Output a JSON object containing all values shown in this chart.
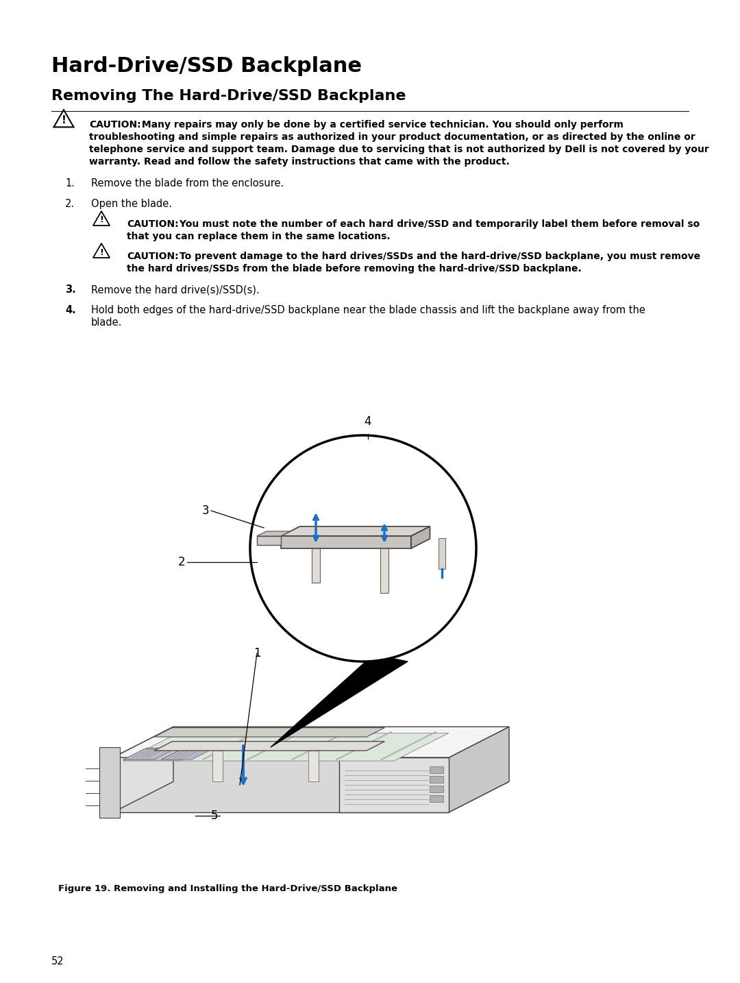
{
  "bg_color": "#ffffff",
  "title": "Hard-Drive/SSD Backplane",
  "subtitle": "Removing The Hard-Drive/SSD Backplane",
  "caution1_bold": "CAUTION:",
  "caution1_rest": " Many repairs may only be done by a certified service technician. You should only perform troubleshooting and simple repairs as authorized in your product documentation, or as directed by the online or telephone service and support team. Damage due to servicing that is not authorized by Dell is not covered by your warranty. Read and follow the safety instructions that came with the product.",
  "step1": "Remove the blade from the enclosure.",
  "step2": "Open the blade.",
  "caution2_bold": "CAUTION:",
  "caution2_rest": " You must note the number of each hard drive/SSD and temporarily label them before removal so that you can replace them in the same locations.",
  "caution3_bold": "CAUTION:",
  "caution3_rest": " To prevent damage to the hard drives/SSDs and the hard-drive/SSD backplane, you must remove the hard drives/SSDs from the blade before removing the hard-drive/SSD backplane.",
  "step3": "Remove the hard drive(s)/SSD(s).",
  "step4a": "Hold both edges of the hard-drive/SSD backplane near the blade chassis and lift the backplane away from the",
  "step4b": "blade.",
  "figure_caption": "Figure 19. Removing and Installing the Hard-Drive/SSD Backplane",
  "page_number": "52",
  "text_color": "#000000",
  "blue_color": "#1e6ec8",
  "gray_color": "#888888"
}
